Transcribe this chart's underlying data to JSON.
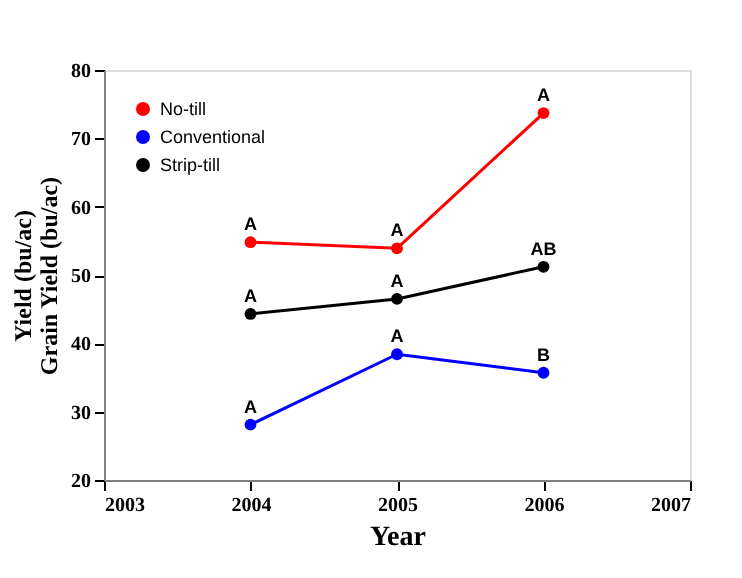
{
  "chart_data": {
    "type": "line",
    "xlabel": "Year",
    "ylabel": "Yield (bu/ac)\nGrain Yield (bu/ac)",
    "x": [
      2004,
      2005,
      2006
    ],
    "series": [
      {
        "name": "No-till",
        "color": "#ff0000",
        "values": [
          54.8,
          53.9,
          73.7
        ]
      },
      {
        "name": "Conventional",
        "color": "#0000ff",
        "values": [
          28.1,
          38.4,
          35.7
        ]
      },
      {
        "name": "Strip-till",
        "color": "#000000",
        "values": [
          44.3,
          46.5,
          51.2
        ]
      }
    ],
    "xlim": [
      2003,
      2007
    ],
    "xticks": [
      2003,
      2004,
      2005,
      2006,
      2007
    ],
    "ylim": [
      20,
      80
    ],
    "yticks": [
      20,
      30,
      40,
      50,
      60,
      70,
      80
    ],
    "grid": false,
    "legend": "top left",
    "marker": "circle",
    "line_style": "solid",
    "annotations": [
      {
        "text": "A",
        "x": 2004,
        "y": 54.8
      },
      {
        "text": "A",
        "x": 2005,
        "y": 53.9
      },
      {
        "text": "A",
        "x": 2006,
        "y": 73.7
      },
      {
        "text": "A",
        "x": 2004,
        "y": 44.3
      },
      {
        "text": "A",
        "x": 2005,
        "y": 46.5
      },
      {
        "text": "AB",
        "x": 2006,
        "y": 51.2
      },
      {
        "text": "A",
        "x": 2004,
        "y": 28.1
      },
      {
        "text": "A",
        "x": 2005,
        "y": 38.4
      },
      {
        "text": "B",
        "x": 2006,
        "y": 35.7
      }
    ]
  }
}
